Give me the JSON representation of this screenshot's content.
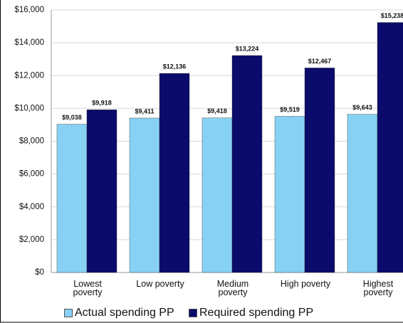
{
  "chart_data": {
    "type": "bar",
    "categories": [
      "Lowest poverty",
      "Low poverty",
      "Medium poverty",
      "High poverty",
      "Highest poverty"
    ],
    "series": [
      {
        "name": "Actual spending PP",
        "color": "#87d2f4",
        "values": [
          9038,
          9411,
          9418,
          9519,
          9643
        ],
        "value_labels": [
          "$9,038",
          "$9,411",
          "$9,418",
          "$9,519",
          "$9,643"
        ]
      },
      {
        "name": "Required spending PP",
        "color": "#0b0b6b",
        "values": [
          9918,
          12136,
          13224,
          12467,
          15238
        ],
        "value_labels": [
          "$9,918",
          "$12,136",
          "$13,224",
          "$12,467",
          "$15,238"
        ]
      }
    ],
    "ylim": [
      0,
      16000
    ],
    "yticks": [
      {
        "value": 0,
        "label": "$0"
      },
      {
        "value": 2000,
        "label": "$2,000"
      },
      {
        "value": 4000,
        "label": "$4,000"
      },
      {
        "value": 6000,
        "label": "$6,000"
      },
      {
        "value": 8000,
        "label": "$8,000"
      },
      {
        "value": 10000,
        "label": "$10,000"
      },
      {
        "value": 12000,
        "label": "$12,000"
      },
      {
        "value": 14000,
        "label": "$14,000"
      },
      {
        "value": 16000,
        "label": "$16,000"
      }
    ],
    "grid": true
  }
}
